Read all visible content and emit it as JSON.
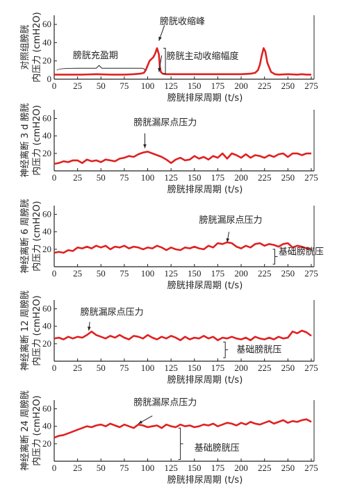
{
  "colors": {
    "series": "#e02020",
    "axis": "#222222"
  },
  "chart_data": [
    {
      "type": "line",
      "ylabel": [
        "对照组膀胱",
        "内压力 (cmH2O)"
      ],
      "xlabel": "膀胱排尿周期 (t/s)",
      "xticks": [
        0,
        25,
        50,
        75,
        100,
        125,
        150,
        175,
        200,
        225,
        250,
        275
      ],
      "yticks": [
        0,
        20,
        40,
        60
      ],
      "xlim": [
        0,
        278
      ],
      "ylim": [
        0,
        70
      ],
      "series": [
        {
          "x": [
            0,
            5,
            15,
            30,
            45,
            60,
            75,
            85,
            92,
            96,
            98,
            100,
            102,
            104,
            106,
            108,
            110,
            112,
            113,
            114,
            116,
            120,
            130,
            145,
            160,
            175,
            190,
            200,
            210,
            215,
            218,
            220,
            222,
            224,
            226,
            228,
            232,
            236,
            240,
            250,
            260,
            265,
            270,
            275
          ],
          "y": [
            5,
            5,
            5,
            5,
            5.5,
            5,
            5,
            5.5,
            6,
            7,
            10,
            15,
            20,
            22,
            24,
            28,
            34,
            27,
            14,
            8,
            6,
            5.5,
            5.5,
            5.5,
            5.5,
            5.5,
            5.5,
            5.5,
            6,
            7,
            10,
            16,
            26,
            34,
            30,
            18,
            8,
            5.5,
            5,
            5.5,
            5,
            5.5,
            5,
            5
          ]
        }
      ],
      "annotations": [
        {
          "text": "膀胱收缩峰",
          "x": 113,
          "y": 60
        },
        {
          "text": "膀胱主动收缩幅度",
          "x": 120,
          "y": 22
        },
        {
          "text": "膀胱充盈期",
          "x": 20,
          "y": 23
        }
      ]
    },
    {
      "type": "line",
      "ylabel": [
        "神经离断 3 d 膀胱",
        "内压力 (cmH2O)"
      ],
      "xlabel": "膀胱排尿周期 (t/s)",
      "xticks": [
        0,
        25,
        50,
        75,
        100,
        125,
        150,
        175,
        200,
        225,
        250,
        275
      ],
      "yticks": [
        20,
        40,
        60
      ],
      "xlim": [
        0,
        278
      ],
      "ylim": [
        0,
        70
      ],
      "series": [
        {
          "x": [
            0,
            5,
            10,
            15,
            20,
            25,
            30,
            35,
            40,
            45,
            50,
            55,
            60,
            65,
            70,
            75,
            80,
            85,
            90,
            95,
            100,
            105,
            110,
            115,
            120,
            125,
            130,
            135,
            140,
            145,
            150,
            155,
            160,
            165,
            170,
            175,
            180,
            185,
            190,
            195,
            200,
            205,
            210,
            215,
            220,
            225,
            230,
            235,
            240,
            245,
            250,
            255,
            260,
            265,
            270,
            275
          ],
          "y": [
            8,
            9,
            11,
            10,
            12,
            12,
            9,
            13,
            11,
            12,
            10,
            13,
            12,
            11,
            14,
            15,
            17,
            16,
            19,
            21,
            22,
            20,
            18,
            16,
            13,
            9,
            13,
            15,
            12,
            13,
            17,
            14,
            16,
            13,
            17,
            15,
            20,
            14,
            20,
            18,
            15,
            19,
            15,
            18,
            17,
            15,
            18,
            16,
            19,
            20,
            16,
            20,
            20,
            18,
            20,
            20
          ]
        }
      ],
      "annotations": [
        {
          "text": "膀胱漏尿点压力",
          "x": 85,
          "y": 52
        }
      ]
    },
    {
      "type": "line",
      "ylabel": [
        "神经离断 6 周膀胱",
        "内压力 (cmH2O)"
      ],
      "xlabel": "膀胱排尿周期 (t/s)",
      "xticks": [
        0,
        25,
        50,
        75,
        100,
        125,
        150,
        175,
        200,
        225,
        250,
        275
      ],
      "yticks": [
        20,
        40,
        60
      ],
      "xlim": [
        0,
        278
      ],
      "ylim": [
        0,
        70
      ],
      "series": [
        {
          "x": [
            0,
            5,
            10,
            15,
            20,
            25,
            30,
            35,
            40,
            45,
            50,
            55,
            60,
            65,
            70,
            75,
            80,
            85,
            90,
            95,
            100,
            105,
            110,
            115,
            120,
            125,
            130,
            135,
            140,
            145,
            150,
            155,
            160,
            165,
            170,
            175,
            180,
            185,
            190,
            195,
            200,
            205,
            210,
            215,
            220,
            225,
            230,
            235,
            240,
            245,
            250,
            255,
            260,
            265,
            270,
            275
          ],
          "y": [
            16,
            17,
            16,
            19,
            18,
            22,
            21,
            23,
            21,
            24,
            22,
            24,
            20,
            23,
            22,
            24,
            21,
            23,
            22,
            20,
            22,
            21,
            24,
            22,
            19,
            22,
            20,
            19,
            22,
            21,
            23,
            21,
            20,
            24,
            22,
            27,
            26,
            28,
            27,
            23,
            21,
            24,
            22,
            26,
            27,
            24,
            26,
            25,
            23,
            26,
            27,
            22,
            24,
            23,
            21,
            20
          ]
        }
      ],
      "annotations": [
        {
          "text": "膀胱漏尿点压力",
          "x": 155,
          "y": 50
        },
        {
          "text": "基础膀胱压",
          "x": 240,
          "y": 14
        }
      ]
    },
    {
      "type": "line",
      "ylabel": [
        "神经离断 12 周膀胱",
        "内压力 (cmH2O)"
      ],
      "xlabel": "膀胱排尿周期 (t/s)",
      "xticks": [
        0,
        25,
        50,
        75,
        100,
        125,
        150,
        175,
        200,
        225,
        250,
        275
      ],
      "yticks": [
        20,
        40,
        60
      ],
      "xlim": [
        0,
        278
      ],
      "ylim": [
        0,
        70
      ],
      "series": [
        {
          "x": [
            0,
            5,
            10,
            15,
            20,
            25,
            30,
            35,
            40,
            45,
            50,
            55,
            60,
            65,
            70,
            75,
            80,
            85,
            90,
            95,
            100,
            105,
            110,
            115,
            120,
            125,
            130,
            135,
            140,
            145,
            150,
            155,
            160,
            165,
            170,
            175,
            180,
            185,
            190,
            195,
            200,
            205,
            210,
            215,
            220,
            225,
            230,
            235,
            240,
            245,
            250,
            255,
            260,
            265,
            270,
            275
          ],
          "y": [
            26,
            27,
            25,
            28,
            26,
            28,
            27,
            30,
            34,
            30,
            28,
            26,
            29,
            27,
            30,
            27,
            25,
            29,
            28,
            26,
            30,
            27,
            25,
            28,
            26,
            29,
            27,
            24,
            28,
            25,
            27,
            26,
            29,
            26,
            28,
            24,
            27,
            26,
            28,
            26,
            25,
            27,
            24,
            28,
            26,
            25,
            27,
            25,
            28,
            26,
            27,
            34,
            32,
            35,
            33,
            29
          ]
        }
      ],
      "annotations": [
        {
          "text": "膀胱漏尿点压力",
          "x": 28,
          "y": 53
        },
        {
          "text": "基础膀胱压",
          "x": 195,
          "y": 10
        }
      ]
    },
    {
      "type": "line",
      "ylabel": [
        "神经离断 24 周膀胱",
        "内压力 (cmH2O)"
      ],
      "xlabel": "膀胱排尿周期 (t/s)",
      "xticks": [
        0,
        25,
        50,
        75,
        100,
        125,
        150,
        175,
        200,
        225,
        250,
        275
      ],
      "yticks": [
        20,
        40,
        60
      ],
      "xlim": [
        0,
        278
      ],
      "ylim": [
        0,
        70
      ],
      "series": [
        {
          "x": [
            0,
            5,
            10,
            15,
            20,
            25,
            30,
            35,
            40,
            45,
            50,
            55,
            60,
            65,
            70,
            75,
            80,
            85,
            90,
            95,
            100,
            105,
            110,
            115,
            120,
            125,
            130,
            135,
            140,
            145,
            150,
            155,
            160,
            165,
            170,
            175,
            180,
            185,
            190,
            195,
            200,
            205,
            210,
            215,
            220,
            225,
            230,
            235,
            240,
            245,
            250,
            255,
            260,
            265,
            270,
            275
          ],
          "y": [
            27,
            29,
            30,
            32,
            34,
            36,
            38,
            40,
            39,
            41,
            42,
            40,
            43,
            41,
            39,
            42,
            40,
            38,
            42,
            41,
            39,
            40,
            41,
            38,
            42,
            40,
            39,
            42,
            40,
            41,
            39,
            40,
            42,
            41,
            43,
            40,
            42,
            44,
            43,
            41,
            44,
            42,
            45,
            43,
            42,
            44,
            46,
            43,
            45,
            47,
            44,
            46,
            45,
            47,
            48,
            45
          ]
        }
      ],
      "annotations": [
        {
          "text": "膀胱漏尿点压力",
          "x": 85,
          "y": 64
        },
        {
          "text": "基础膀胱压",
          "x": 150,
          "y": 12
        }
      ]
    }
  ]
}
